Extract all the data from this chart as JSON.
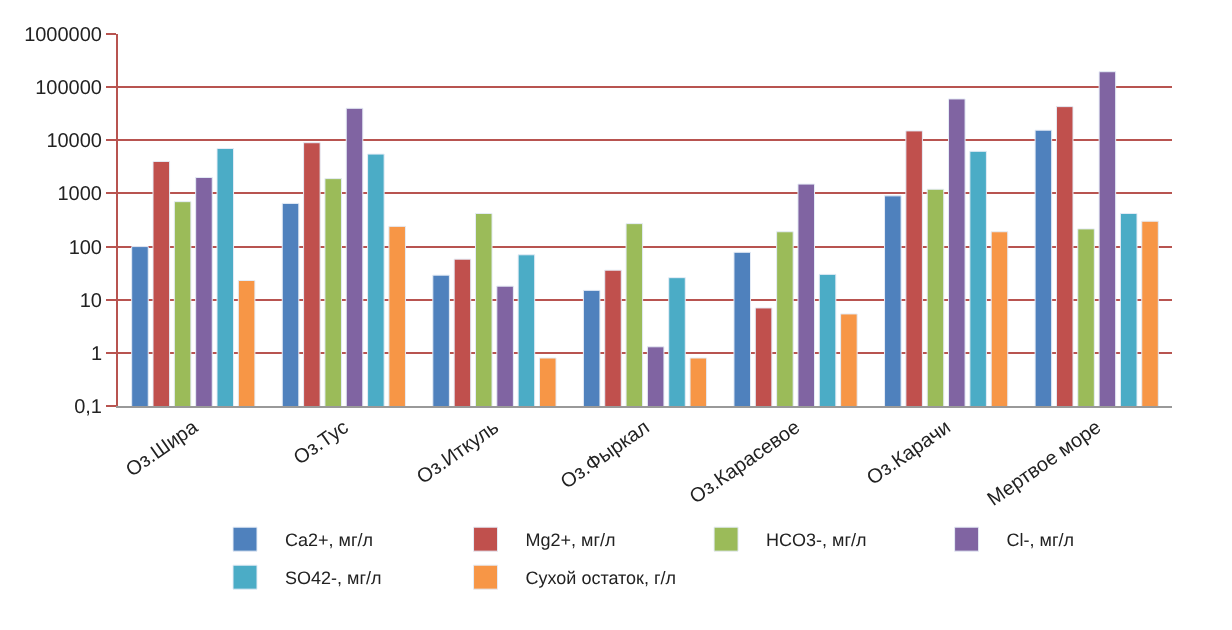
{
  "chart_data": {
    "type": "bar",
    "log": "y",
    "categories": [
      "Оз.Шира",
      "Оз.Тус",
      "Оз.Иткуль",
      "Оз.Фыркал",
      "Оз.Карасевое",
      "Оз.Карачи",
      "Мертвое море"
    ],
    "series": [
      {
        "name": "Ca2+, мг/л",
        "color": "#4f81bd",
        "values": [
          100,
          650,
          29,
          15,
          78,
          900,
          15500
        ]
      },
      {
        "name": "Mg2+, мг/л",
        "color": "#c0504d",
        "values": [
          4000,
          9000,
          58,
          36,
          7,
          15000,
          43000
        ]
      },
      {
        "name": "HCO3-, мг/л",
        "color": "#9bbb59",
        "values": [
          700,
          1900,
          420,
          270,
          190,
          1200,
          215
        ]
      },
      {
        "name": "Cl-, мг/л",
        "color": "#8064a2",
        "values": [
          2000,
          40000,
          18,
          1.3,
          1500,
          60000,
          195000
        ]
      },
      {
        "name": "SO42-, мг/л",
        "color": "#4bacc6",
        "values": [
          7000,
          5500,
          70,
          26,
          30,
          6200,
          420
        ]
      },
      {
        "name": "Сухой остаток, г/л",
        "color": "#f79646",
        "values": [
          23,
          240,
          0.8,
          0.8,
          5.4,
          190,
          300
        ]
      }
    ],
    "ylim": [
      0.1,
      1000000
    ],
    "yticks": [
      {
        "value": 0.1,
        "label": "0,1"
      },
      1,
      10,
      100,
      1000,
      10000,
      100000,
      1000000
    ],
    "grid": "y",
    "legend": "bottom"
  }
}
